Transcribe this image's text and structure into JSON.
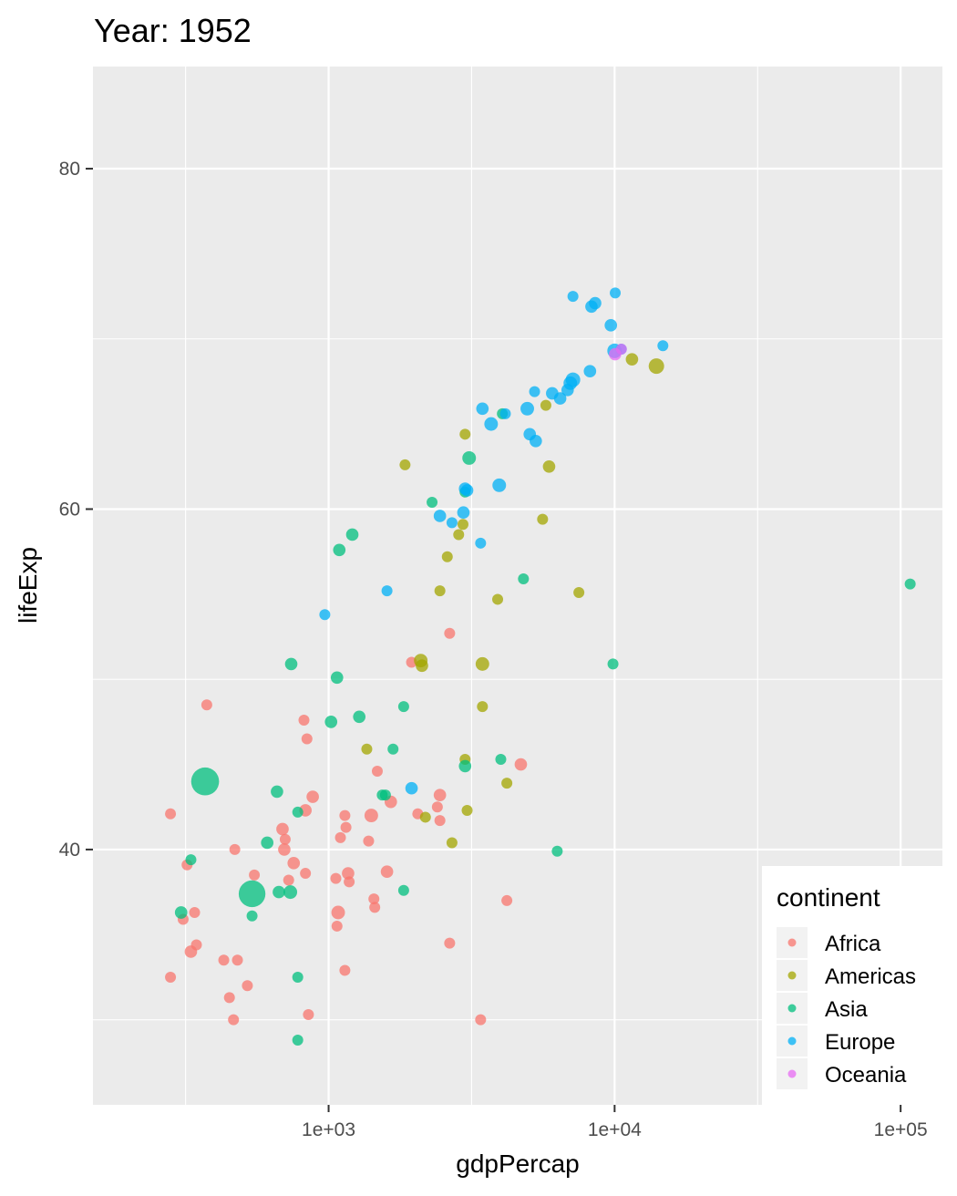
{
  "title": "Year: 1952",
  "chart_data": {
    "type": "scatter",
    "title": "Year: 1952",
    "xlabel": "gdpPercap",
    "ylabel": "lifeExp",
    "x_scale": "log10",
    "xlim": [
      150,
      140000
    ],
    "ylim": [
      25,
      86
    ],
    "x_ticks": [
      1000,
      10000,
      100000
    ],
    "x_tick_labels": [
      "1e+03",
      "1e+04",
      "1e+05"
    ],
    "y_ticks": [
      40,
      60,
      80
    ],
    "y_tick_labels": [
      "40",
      "60",
      "80"
    ],
    "grid": true,
    "legend": {
      "title": "continent",
      "placement": "bottom-right",
      "entries": [
        {
          "label": "Africa",
          "color": "#F8766D"
        },
        {
          "label": "Americas",
          "color": "#A3A500"
        },
        {
          "label": "Asia",
          "color": "#00BF7D"
        },
        {
          "label": "Europe",
          "color": "#00B0F6"
        },
        {
          "label": "Oceania",
          "color": "#E76BF3"
        }
      ]
    },
    "size_legend_visible": false,
    "series": [
      {
        "name": "Africa",
        "color": "#F8766D",
        "points": [
          {
            "x": 280,
            "y": 42.1,
            "s": 1
          },
          {
            "x": 375,
            "y": 48.5,
            "s": 1
          },
          {
            "x": 310,
            "y": 35.9,
            "s": 1
          },
          {
            "x": 320,
            "y": 39.1,
            "s": 1
          },
          {
            "x": 340,
            "y": 36.3,
            "s": 1
          },
          {
            "x": 330,
            "y": 34.0,
            "s": 2
          },
          {
            "x": 345,
            "y": 34.4,
            "s": 1
          },
          {
            "x": 280,
            "y": 32.5,
            "s": 1
          },
          {
            "x": 430,
            "y": 33.5,
            "s": 1
          },
          {
            "x": 470,
            "y": 40.0,
            "s": 1
          },
          {
            "x": 480,
            "y": 33.5,
            "s": 1
          },
          {
            "x": 450,
            "y": 31.3,
            "s": 1
          },
          {
            "x": 520,
            "y": 32.0,
            "s": 1
          },
          {
            "x": 465,
            "y": 30.0,
            "s": 1
          },
          {
            "x": 550,
            "y": 38.5,
            "s": 1
          },
          {
            "x": 690,
            "y": 41.2,
            "s": 2
          },
          {
            "x": 705,
            "y": 40.6,
            "s": 1
          },
          {
            "x": 700,
            "y": 40.0,
            "s": 2
          },
          {
            "x": 725,
            "y": 38.2,
            "s": 1
          },
          {
            "x": 755,
            "y": 39.2,
            "s": 2
          },
          {
            "x": 820,
            "y": 47.6,
            "s": 1
          },
          {
            "x": 840,
            "y": 46.5,
            "s": 1
          },
          {
            "x": 830,
            "y": 42.3,
            "s": 2
          },
          {
            "x": 880,
            "y": 43.1,
            "s": 2
          },
          {
            "x": 830,
            "y": 38.6,
            "s": 1
          },
          {
            "x": 850,
            "y": 30.3,
            "s": 1
          },
          {
            "x": 1060,
            "y": 38.3,
            "s": 1
          },
          {
            "x": 1070,
            "y": 35.5,
            "s": 1
          },
          {
            "x": 1080,
            "y": 36.3,
            "s": 3
          },
          {
            "x": 1100,
            "y": 40.7,
            "s": 1
          },
          {
            "x": 1140,
            "y": 42.0,
            "s": 1
          },
          {
            "x": 1150,
            "y": 41.3,
            "s": 1
          },
          {
            "x": 1170,
            "y": 38.6,
            "s": 2
          },
          {
            "x": 1180,
            "y": 38.1,
            "s": 1
          },
          {
            "x": 1140,
            "y": 32.9,
            "s": 1
          },
          {
            "x": 1380,
            "y": 40.5,
            "s": 1
          },
          {
            "x": 1410,
            "y": 42.0,
            "s": 3
          },
          {
            "x": 1440,
            "y": 37.1,
            "s": 1
          },
          {
            "x": 1450,
            "y": 36.6,
            "s": 1
          },
          {
            "x": 1480,
            "y": 44.6,
            "s": 1
          },
          {
            "x": 1600,
            "y": 38.7,
            "s": 2
          },
          {
            "x": 1650,
            "y": 42.8,
            "s": 2
          },
          {
            "x": 1950,
            "y": 51.0,
            "s": 1
          },
          {
            "x": 2050,
            "y": 42.1,
            "s": 1
          },
          {
            "x": 2400,
            "y": 42.5,
            "s": 1
          },
          {
            "x": 2450,
            "y": 41.7,
            "s": 1
          },
          {
            "x": 2450,
            "y": 43.2,
            "s": 2
          },
          {
            "x": 2650,
            "y": 52.7,
            "s": 1
          },
          {
            "x": 2650,
            "y": 34.5,
            "s": 1
          },
          {
            "x": 3400,
            "y": 30.0,
            "s": 1
          },
          {
            "x": 4200,
            "y": 37.0,
            "s": 1
          },
          {
            "x": 4700,
            "y": 45.0,
            "s": 2
          }
        ]
      },
      {
        "name": "Americas",
        "color": "#A3A500",
        "points": [
          {
            "x": 1850,
            "y": 62.6,
            "s": 1
          },
          {
            "x": 2100,
            "y": 51.1,
            "s": 3
          },
          {
            "x": 2120,
            "y": 50.8,
            "s": 2
          },
          {
            "x": 2180,
            "y": 41.9,
            "s": 1
          },
          {
            "x": 2450,
            "y": 55.2,
            "s": 1
          },
          {
            "x": 2600,
            "y": 57.2,
            "s": 1
          },
          {
            "x": 2700,
            "y": 40.4,
            "s": 1
          },
          {
            "x": 2850,
            "y": 58.5,
            "s": 1
          },
          {
            "x": 2950,
            "y": 59.1,
            "s": 1
          },
          {
            "x": 3000,
            "y": 64.4,
            "s": 1
          },
          {
            "x": 3000,
            "y": 45.3,
            "s": 1
          },
          {
            "x": 3050,
            "y": 42.3,
            "s": 1
          },
          {
            "x": 3450,
            "y": 50.9,
            "s": 3
          },
          {
            "x": 3450,
            "y": 48.4,
            "s": 1
          },
          {
            "x": 3900,
            "y": 54.7,
            "s": 1
          },
          {
            "x": 4200,
            "y": 43.9,
            "s": 1
          },
          {
            "x": 1360,
            "y": 45.9,
            "s": 1
          },
          {
            "x": 5600,
            "y": 59.4,
            "s": 1
          },
          {
            "x": 5750,
            "y": 66.1,
            "s": 1
          },
          {
            "x": 5900,
            "y": 62.5,
            "s": 2
          },
          {
            "x": 7500,
            "y": 55.1,
            "s": 1
          },
          {
            "x": 11500,
            "y": 68.8,
            "s": 2
          },
          {
            "x": 14000,
            "y": 68.4,
            "s": 5
          }
        ]
      },
      {
        "name": "Asia",
        "color": "#00BF7D",
        "points": [
          {
            "x": 780,
            "y": 28.8,
            "s": 1
          },
          {
            "x": 330,
            "y": 39.4,
            "s": 1
          },
          {
            "x": 305,
            "y": 36.3,
            "s": 2
          },
          {
            "x": 370,
            "y": 44.0,
            "s": 10
          },
          {
            "x": 540,
            "y": 37.4,
            "s": 8
          },
          {
            "x": 540,
            "y": 36.1,
            "s": 1
          },
          {
            "x": 610,
            "y": 40.4,
            "s": 2
          },
          {
            "x": 660,
            "y": 43.4,
            "s": 2
          },
          {
            "x": 670,
            "y": 37.5,
            "s": 2
          },
          {
            "x": 735,
            "y": 37.5,
            "s": 3
          },
          {
            "x": 740,
            "y": 50.9,
            "s": 2
          },
          {
            "x": 780,
            "y": 42.2,
            "s": 1
          },
          {
            "x": 780,
            "y": 32.5,
            "s": 1
          },
          {
            "x": 1020,
            "y": 47.5,
            "s": 2
          },
          {
            "x": 1070,
            "y": 50.1,
            "s": 2
          },
          {
            "x": 1090,
            "y": 57.6,
            "s": 2
          },
          {
            "x": 1210,
            "y": 58.5,
            "s": 2
          },
          {
            "x": 1280,
            "y": 47.8,
            "s": 2
          },
          {
            "x": 1540,
            "y": 43.2,
            "s": 1
          },
          {
            "x": 1580,
            "y": 43.2,
            "s": 1
          },
          {
            "x": 1680,
            "y": 45.9,
            "s": 1
          },
          {
            "x": 1830,
            "y": 48.4,
            "s": 1
          },
          {
            "x": 1830,
            "y": 37.6,
            "s": 1
          },
          {
            "x": 2300,
            "y": 60.4,
            "s": 1
          },
          {
            "x": 3000,
            "y": 44.9,
            "s": 2
          },
          {
            "x": 3100,
            "y": 63.0,
            "s": 3
          },
          {
            "x": 3000,
            "y": 61.0,
            "s": 1
          },
          {
            "x": 4000,
            "y": 45.3,
            "s": 1
          },
          {
            "x": 4050,
            "y": 65.6,
            "s": 1
          },
          {
            "x": 4800,
            "y": 55.9,
            "s": 1
          },
          {
            "x": 6300,
            "y": 39.9,
            "s": 1
          },
          {
            "x": 9870,
            "y": 50.9,
            "s": 1
          },
          {
            "x": 108000,
            "y": 55.6,
            "s": 1
          }
        ]
      },
      {
        "name": "Europe",
        "color": "#00B0F6",
        "points": [
          {
            "x": 970,
            "y": 53.8,
            "s": 1
          },
          {
            "x": 1600,
            "y": 55.2,
            "s": 1
          },
          {
            "x": 1950,
            "y": 43.6,
            "s": 2
          },
          {
            "x": 2450,
            "y": 59.6,
            "s": 2
          },
          {
            "x": 2700,
            "y": 59.2,
            "s": 1
          },
          {
            "x": 2960,
            "y": 59.8,
            "s": 2
          },
          {
            "x": 3000,
            "y": 61.2,
            "s": 2
          },
          {
            "x": 3050,
            "y": 61.1,
            "s": 2
          },
          {
            "x": 3400,
            "y": 58.0,
            "s": 1
          },
          {
            "x": 3450,
            "y": 65.9,
            "s": 2
          },
          {
            "x": 3700,
            "y": 65.0,
            "s": 3
          },
          {
            "x": 3950,
            "y": 61.4,
            "s": 3
          },
          {
            "x": 4150,
            "y": 65.6,
            "s": 1
          },
          {
            "x": 4950,
            "y": 65.9,
            "s": 3
          },
          {
            "x": 5050,
            "y": 64.4,
            "s": 2
          },
          {
            "x": 5250,
            "y": 66.9,
            "s": 1
          },
          {
            "x": 5300,
            "y": 64.0,
            "s": 2
          },
          {
            "x": 6050,
            "y": 66.8,
            "s": 2
          },
          {
            "x": 6450,
            "y": 66.5,
            "s": 2
          },
          {
            "x": 6850,
            "y": 67.0,
            "s": 2
          },
          {
            "x": 7000,
            "y": 67.4,
            "s": 3
          },
          {
            "x": 7150,
            "y": 67.6,
            "s": 4
          },
          {
            "x": 7150,
            "y": 72.5,
            "s": 1
          },
          {
            "x": 8300,
            "y": 71.9,
            "s": 2
          },
          {
            "x": 8550,
            "y": 72.1,
            "s": 2
          },
          {
            "x": 8200,
            "y": 68.1,
            "s": 2
          },
          {
            "x": 9700,
            "y": 70.8,
            "s": 2
          },
          {
            "x": 10050,
            "y": 72.7,
            "s": 1
          },
          {
            "x": 10000,
            "y": 69.3,
            "s": 4
          },
          {
            "x": 10550,
            "y": 69.4,
            "s": 1
          },
          {
            "x": 14750,
            "y": 69.6,
            "s": 1
          }
        ]
      },
      {
        "name": "Oceania",
        "color": "#E76BF3",
        "points": [
          {
            "x": 10040,
            "y": 69.1,
            "s": 2
          },
          {
            "x": 10560,
            "y": 69.4,
            "s": 1
          }
        ]
      }
    ]
  }
}
